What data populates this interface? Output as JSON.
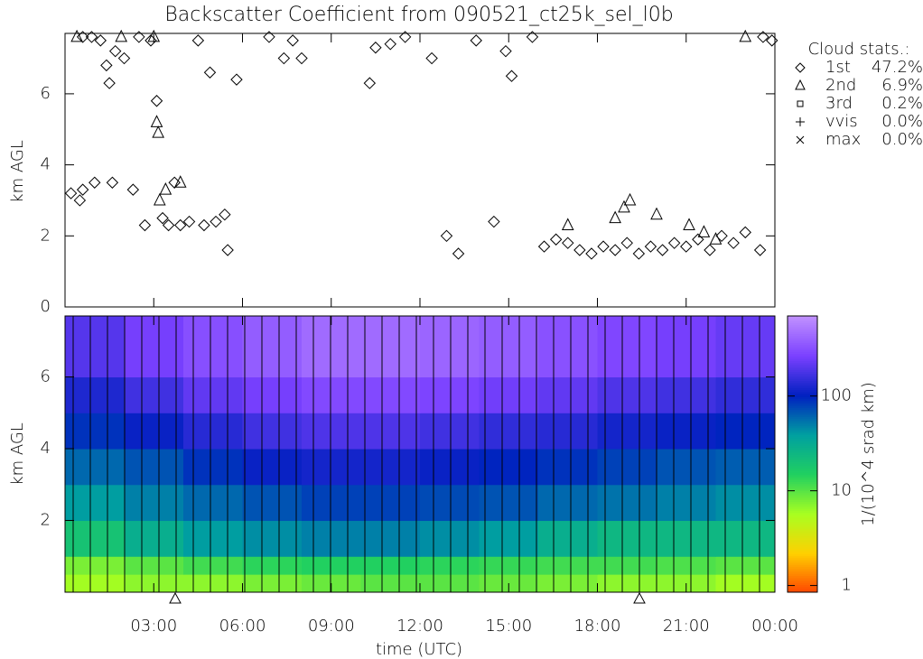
{
  "chart_data": [
    {
      "type": "scatter",
      "title": "Backscatter Coefficient from 090521_ct25k_sel_l0b",
      "y_label": "km AGL",
      "xlim": [
        0,
        24
      ],
      "ylim": [
        0,
        7.7
      ],
      "yticks": [
        0,
        2,
        4,
        6
      ],
      "legend_title": "Cloud stats.:",
      "legend": "right",
      "series": [
        {
          "name": "1st",
          "stat": "47.2%",
          "marker": "diamond",
          "x": [
            0.2,
            0.5,
            0.6,
            0.6,
            0.9,
            1.0,
            1.2,
            1.4,
            1.5,
            1.6,
            1.7,
            2.0,
            2.3,
            2.5,
            2.7,
            2.9,
            3.1,
            3.3,
            3.5,
            3.7,
            3.9,
            4.2,
            4.5,
            4.7,
            4.9,
            5.1,
            5.4,
            5.5,
            5.8,
            6.9,
            7.4,
            7.7,
            8.0,
            10.3,
            10.5,
            11.0,
            11.5,
            12.4,
            12.9,
            13.3,
            13.9,
            14.5,
            14.9,
            15.1,
            15.8,
            16.2,
            16.6,
            17.0,
            17.4,
            17.8,
            18.2,
            18.6,
            19.0,
            19.4,
            19.8,
            20.2,
            20.6,
            21.0,
            21.4,
            21.8,
            22.2,
            22.6,
            23.0,
            23.5,
            23.6,
            23.9
          ],
          "y": [
            3.2,
            3.0,
            3.3,
            7.6,
            7.6,
            3.5,
            7.5,
            6.8,
            6.3,
            3.5,
            7.2,
            7.0,
            3.3,
            7.6,
            2.3,
            7.5,
            5.8,
            2.5,
            2.3,
            3.5,
            2.3,
            2.4,
            7.5,
            2.3,
            6.6,
            2.4,
            2.6,
            1.6,
            6.4,
            7.6,
            7.0,
            7.5,
            7.0,
            6.3,
            7.3,
            7.4,
            7.6,
            7.0,
            2.0,
            1.5,
            7.5,
            2.4,
            7.2,
            6.5,
            7.6,
            1.7,
            1.9,
            1.8,
            1.6,
            1.5,
            1.7,
            1.6,
            1.8,
            1.5,
            1.7,
            1.6,
            1.8,
            1.7,
            1.9,
            1.6,
            2.0,
            1.8,
            2.1,
            1.6,
            7.6,
            7.5
          ]
        },
        {
          "name": "2nd",
          "stat": "6.9%",
          "marker": "triangle",
          "x": [
            0.4,
            1.9,
            3.0,
            3.1,
            3.15,
            3.2,
            3.4,
            3.9,
            17.0,
            18.6,
            18.9,
            19.1,
            20.0,
            21.1,
            21.6,
            22.0,
            23.0
          ],
          "y": [
            7.6,
            7.6,
            7.6,
            5.2,
            4.9,
            3.0,
            3.3,
            3.5,
            2.3,
            2.5,
            2.8,
            3.0,
            2.6,
            2.3,
            2.1,
            1.9,
            7.6
          ]
        },
        {
          "name": "3rd",
          "stat": "0.2%",
          "marker": "square",
          "x": [],
          "y": []
        },
        {
          "name": "vvis",
          "stat": "0.0%",
          "marker": "plus",
          "x": [],
          "y": []
        },
        {
          "name": "max",
          "stat": "0.0%",
          "marker": "cross",
          "x": [],
          "y": []
        }
      ]
    },
    {
      "type": "heatmap",
      "x_label": "time (UTC)",
      "y_label": "km AGL",
      "colorbar_label": "1/(10^4 srad km)",
      "xlim": [
        0,
        24
      ],
      "xticks": [
        {
          "value": 3,
          "label": "03:00"
        },
        {
          "value": 6,
          "label": "06:00"
        },
        {
          "value": 9,
          "label": "09:00"
        },
        {
          "value": 12,
          "label": "12:00"
        },
        {
          "value": 15,
          "label": "15:00"
        },
        {
          "value": 18,
          "label": "18:00"
        },
        {
          "value": 21,
          "label": "21:00"
        },
        {
          "value": 24,
          "label": "00:00"
        }
      ],
      "ylim": [
        0,
        7.7
      ],
      "yticks": [
        2,
        4,
        6
      ],
      "clim": [
        0.85,
        700
      ],
      "cticks": [
        1,
        10,
        100
      ],
      "log_color": true,
      "colormap": [
        "#ff4500",
        "#ffd000",
        "#a8ff20",
        "#20d060",
        "#00a0a0",
        "#0020c0",
        "#7a40ff",
        "#c090ff"
      ],
      "x_edges": [
        0,
        2,
        4,
        6,
        8,
        10,
        12,
        14,
        16,
        18,
        20,
        22,
        24
      ],
      "y_edges": [
        0,
        0.5,
        1,
        2,
        3,
        4,
        5,
        6,
        7.7
      ],
      "z": [
        [
          6,
          7,
          7,
          8,
          9,
          10,
          10,
          9,
          8,
          7,
          7,
          6
        ],
        [
          8,
          10,
          12,
          14,
          15,
          15,
          14,
          13,
          12,
          12,
          11,
          10
        ],
        [
          20,
          30,
          40,
          45,
          50,
          50,
          45,
          40,
          30,
          25,
          25,
          25
        ],
        [
          40,
          50,
          60,
          70,
          80,
          80,
          75,
          70,
          60,
          55,
          50,
          45
        ],
        [
          60,
          70,
          90,
          110,
          120,
          120,
          110,
          100,
          90,
          80,
          70,
          65
        ],
        [
          90,
          110,
          140,
          170,
          190,
          190,
          170,
          150,
          140,
          120,
          110,
          100
        ],
        [
          130,
          170,
          220,
          260,
          300,
          300,
          280,
          250,
          220,
          190,
          170,
          150
        ],
        [
          200,
          260,
          320,
          380,
          450,
          450,
          420,
          380,
          330,
          290,
          260,
          230
        ]
      ]
    }
  ]
}
